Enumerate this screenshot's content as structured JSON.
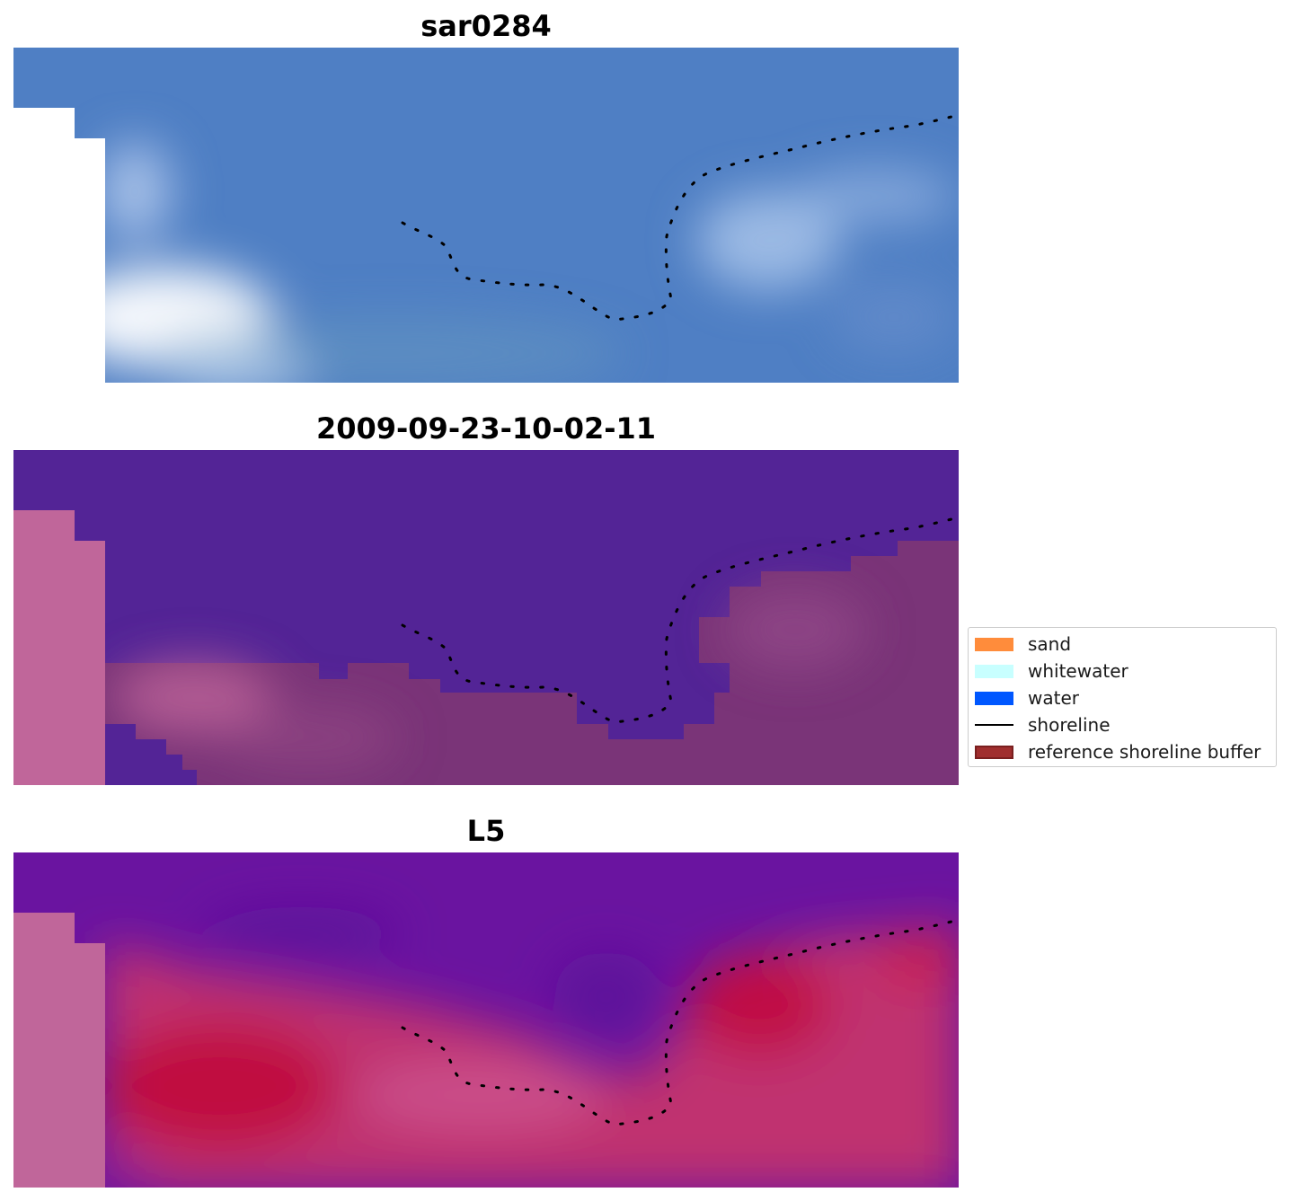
{
  "panels": [
    {
      "title": "sar0284",
      "type": "rgb"
    },
    {
      "title": "2009-09-23-10-02-11",
      "type": "classification"
    },
    {
      "title": "L5",
      "type": "index"
    }
  ],
  "legend": {
    "items": [
      {
        "label": "sand",
        "kind": "patch",
        "color": "#ff8c3b",
        "edge": "#ff8c3b"
      },
      {
        "label": "whitewater",
        "kind": "patch",
        "color": "#c8ffff",
        "edge": "#c8ffff"
      },
      {
        "label": "water",
        "kind": "patch",
        "color": "#0057ff",
        "edge": "#0057ff"
      },
      {
        "label": "shoreline",
        "kind": "line",
        "color": "#000000",
        "edge": "#000000"
      },
      {
        "label": "reference shoreline buffer",
        "kind": "patch",
        "color": "#a02e2e",
        "edge": "#7a1f1f"
      }
    ]
  },
  "colors": {
    "rgb_water": "#4f7fc4",
    "class_water": "#532496",
    "class_land": "#7a3478",
    "buffer_overlay": "#c0669a",
    "index_water": "#6a14a0",
    "index_land": "#c01045",
    "shoreline": "#000000"
  }
}
